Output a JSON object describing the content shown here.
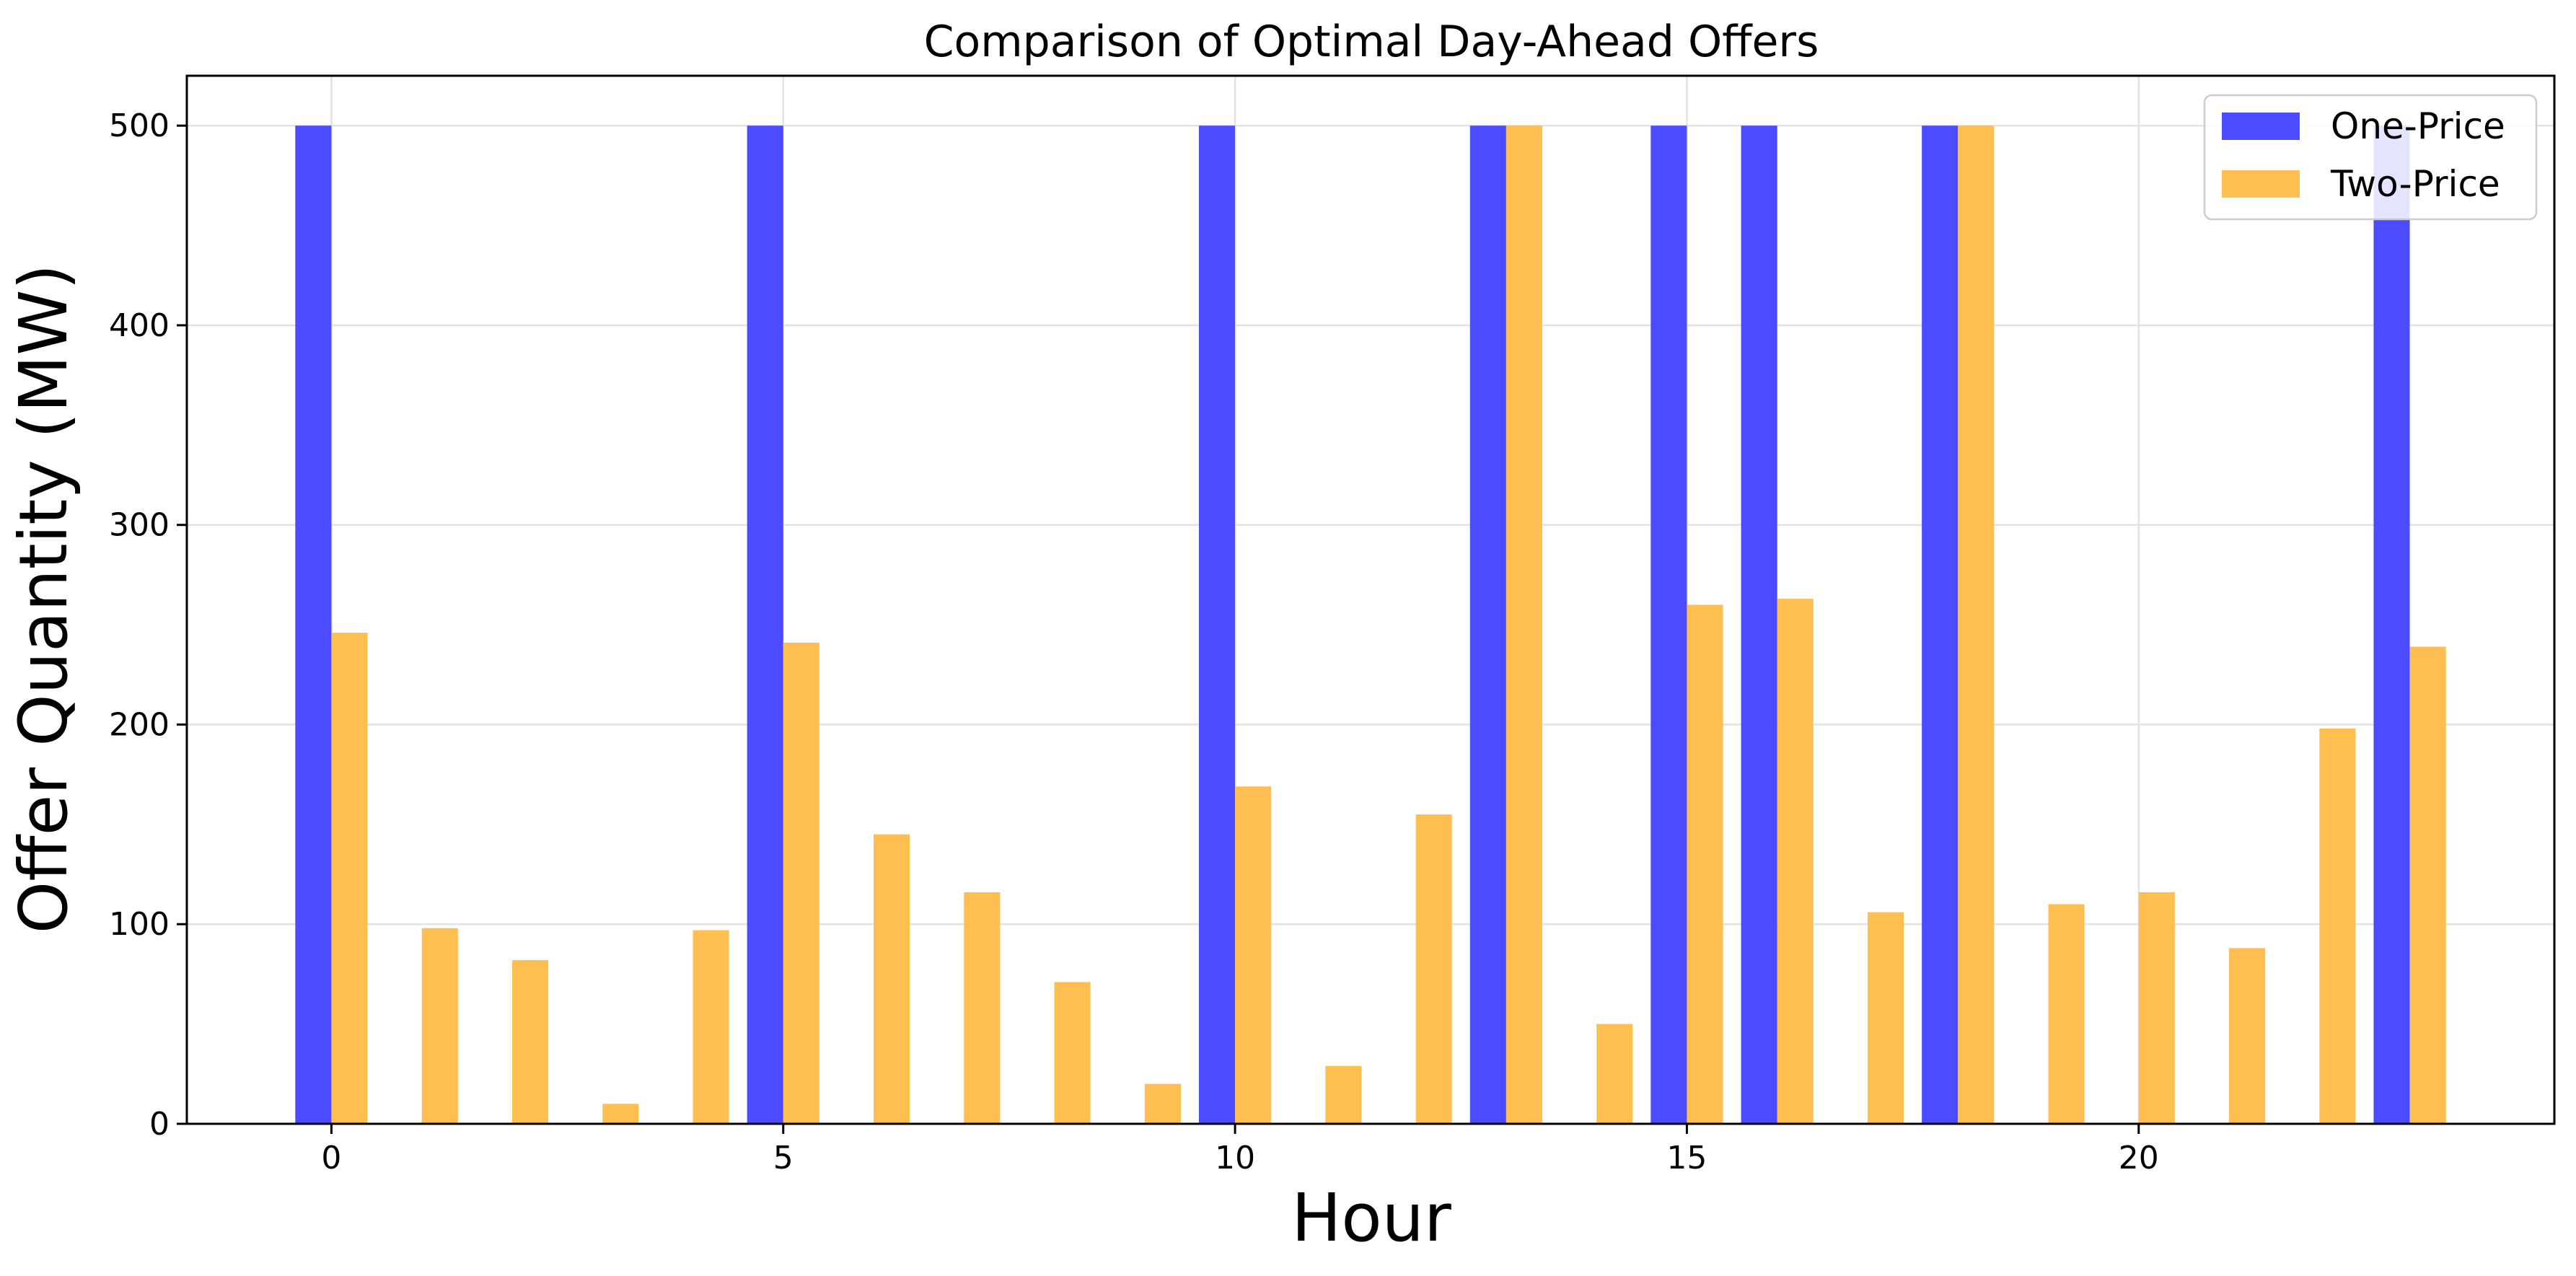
{
  "chart_data": {
    "type": "bar",
    "title": "Comparison of Optimal Day-Ahead Offers",
    "xlabel": "Hour",
    "ylabel": "Offer Quantity (MW)",
    "x": [
      0,
      1,
      2,
      3,
      4,
      5,
      6,
      7,
      8,
      9,
      10,
      11,
      12,
      13,
      14,
      15,
      16,
      17,
      18,
      19,
      20,
      21,
      22,
      23
    ],
    "xlim": [
      -1.6,
      24.6
    ],
    "ylim": [
      0,
      525
    ],
    "xticks": [
      0,
      5,
      10,
      15,
      20
    ],
    "yticks": [
      0,
      100,
      200,
      300,
      400,
      500
    ],
    "grid": true,
    "legend_position": "top-right",
    "series": [
      {
        "name": "One-Price",
        "color": "#4b4bff",
        "values": [
          500,
          0,
          0,
          0,
          0,
          500,
          0,
          0,
          0,
          0,
          500,
          0,
          0,
          500,
          0,
          500,
          500,
          0,
          500,
          0,
          0,
          0,
          0,
          500
        ]
      },
      {
        "name": "Two-Price",
        "color": "#ffbe50",
        "values": [
          246,
          98,
          82,
          10,
          97,
          241,
          145,
          116,
          71,
          20,
          169,
          29,
          155,
          500,
          50,
          260,
          263,
          106,
          500,
          110,
          116,
          88,
          198,
          239
        ]
      }
    ]
  }
}
